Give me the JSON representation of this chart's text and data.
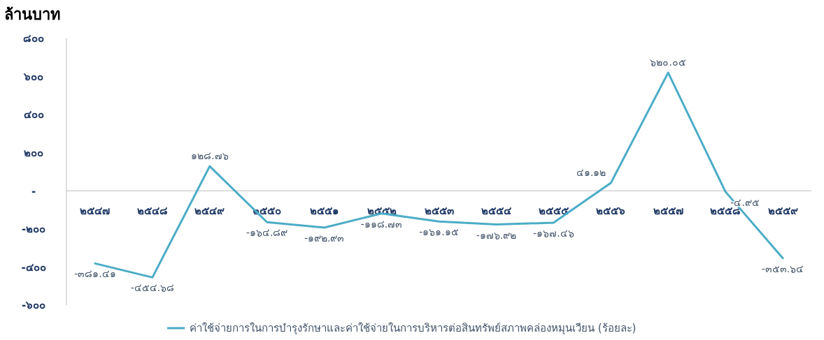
{
  "chart_data": {
    "type": "line",
    "ylabel": "ล้านบาท",
    "categories": [
      "๒๕๔๗",
      "๒๕๔๘",
      "๒๕๔๙",
      "๒๕๕๐",
      "๒๕๕๑",
      "๒๕๕๒",
      "๒๕๕๓",
      "๒๕๕๔",
      "๒๕๕๕",
      "๒๕๕๖",
      "๒๕๕๗",
      "๒๕๕๘",
      "๒๕๕๙"
    ],
    "series": [
      {
        "name": "ค่าใช้จ่ายการในการบำรุงรักษาและค่าใช้จ่ายในการบริหารต่อสินทรัพย์สภาพคล่องหมุนเวียน (ร้อยละ)",
        "color": "#4bacc6",
        "values": [
          -381.41,
          -454.68,
          128.76,
          -164.89,
          -192.93,
          -118.73,
          -161.15,
          -176.92,
          -167.46,
          41.12,
          620.05,
          -4.95,
          -353.64
        ],
        "value_labels": [
          "-๓๘๑.๔๑",
          "-๔๕๔.๖๘",
          "๑๒๘.๗๖",
          "-๑๖๔.๘๙",
          "-๑๙๒.๙๓",
          "-๑๑๘.๗๓",
          "-๑๖๑.๑๕",
          "-๑๗๖.๙๒",
          "-๑๖๗.๔๖",
          "๔๑.๑๒",
          "๖๒๐.๐๕",
          "-๔.๙๕",
          "-๓๕๓.๖๔"
        ]
      }
    ],
    "ylim": [
      -600,
      800
    ],
    "yticks": [
      {
        "value": -600,
        "label": "-๖๐๐"
      },
      {
        "value": -400,
        "label": "-๔๐๐"
      },
      {
        "value": -200,
        "label": "-๒๐๐"
      },
      {
        "value": 0,
        "label": "-"
      },
      {
        "value": 200,
        "label": "๒๐๐"
      },
      {
        "value": 400,
        "label": "๔๐๐"
      },
      {
        "value": 600,
        "label": "๖๐๐"
      },
      {
        "value": 800,
        "label": "๘๐๐"
      }
    ],
    "grid": false,
    "legend": "bottom",
    "marker": "none",
    "line_style": "solid"
  }
}
